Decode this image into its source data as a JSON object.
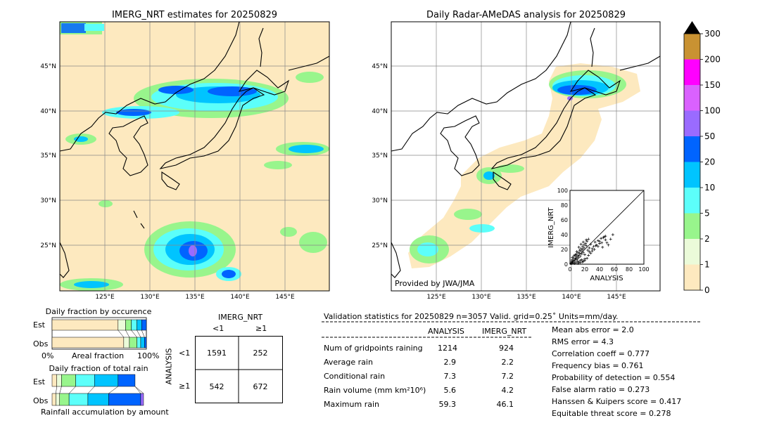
{
  "left_map": {
    "title": "IMERG_NRT estimates for 20250829",
    "lat_labels": [
      "45°N",
      "40°N",
      "35°N",
      "30°N",
      "25°N"
    ],
    "lon_labels": [
      "125°E",
      "130°E",
      "135°E",
      "140°E",
      "145°E"
    ]
  },
  "right_map": {
    "title": "Daily Radar-AMeDAS analysis for 20250829",
    "lat_labels": [
      "45°N",
      "40°N",
      "35°N",
      "30°N",
      "25°N"
    ],
    "lon_labels": [
      "125°E",
      "130°E",
      "135°E",
      "140°E",
      "145°E"
    ],
    "credit": "Provided by JWA/JMA"
  },
  "colorbar": {
    "levels": [
      "0",
      "1",
      "2",
      "5",
      "10",
      "20",
      "50",
      "100",
      "150",
      "200",
      "300"
    ],
    "colors": [
      "#fde9bf",
      "#ebfbd9",
      "#98f58c",
      "#5cfffa",
      "#00c4ff",
      "#0064ff",
      "#9a6bff",
      "#da61ff",
      "#ff00ff",
      "#c99232"
    ]
  },
  "scatter": {
    "xlabel": "ANALYSIS",
    "ylabel": "IMERG_NRT",
    "ticks": [
      "0",
      "20",
      "40",
      "60",
      "80",
      "100"
    ]
  },
  "occurrence": {
    "title": "Daily fraction by occurence",
    "row_est": "Est",
    "row_obs": "Obs",
    "axis_left": "0%",
    "axis_mid": "Areal fraction",
    "axis_right": "100%"
  },
  "total_rain": {
    "title": "Daily fraction of total rain",
    "row_est": "Est",
    "row_obs": "Obs",
    "footer": "Rainfall accumulation by amount"
  },
  "contingency": {
    "col_title": "IMERG_NRT",
    "col_lt": "<1",
    "col_ge": "≥1",
    "row_title": "ANALYSIS",
    "row_lt": "<1",
    "row_ge": "≥1",
    "cells": [
      [
        "1591",
        "252"
      ],
      [
        "542",
        "672"
      ]
    ]
  },
  "validation": {
    "header": "Validation statistics for 20250829  n=3057 Valid. grid=0.25˚ Units=mm/day.",
    "col_analysis": "ANALYSIS",
    "col_imerg": "IMERG_NRT",
    "rows": [
      {
        "label": "Num of gridpoints raining",
        "analysis": "1214",
        "imerg": "924"
      },
      {
        "label": "Average rain",
        "analysis": "2.9",
        "imerg": "2.2"
      },
      {
        "label": "Conditional rain",
        "analysis": "7.3",
        "imerg": "7.2"
      },
      {
        "label": "Rain volume (mm km²10⁶)",
        "analysis": "5.6",
        "imerg": "4.2"
      },
      {
        "label": "Maximum rain",
        "analysis": "59.3",
        "imerg": "46.1"
      }
    ],
    "scores": [
      "Mean abs error =    2.0",
      "RMS error =    4.3",
      "Correlation coeff =  0.777",
      "Frequency bias =  0.761",
      "Probability of detection =  0.554",
      "False alarm ratio =  0.273",
      "Hanssen & Kuipers score =  0.417",
      "Equitable threat score =  0.278"
    ]
  },
  "chart_data": [
    {
      "type": "table",
      "title": "Validation statistics for 20250829",
      "columns": [
        "",
        "ANALYSIS",
        "IMERG_NRT"
      ],
      "rows": [
        [
          "Num of gridpoints raining",
          1214,
          924
        ],
        [
          "Average rain",
          2.9,
          2.2
        ],
        [
          "Conditional rain",
          7.3,
          7.2
        ],
        [
          "Rain volume (mm km²10⁶)",
          5.6,
          4.2
        ],
        [
          "Maximum rain",
          59.3,
          46.1
        ]
      ]
    },
    {
      "type": "table",
      "title": "",
      "columns": [
        "ANALYSIS \\ IMERG_NRT",
        "<1",
        "≥1"
      ],
      "rows": [
        [
          "<1",
          1591,
          252
        ],
        [
          "≥1",
          542,
          672
        ]
      ]
    },
    {
      "type": "scatter",
      "xlabel": "ANALYSIS",
      "ylabel": "IMERG_NRT",
      "xlim": [
        0,
        100
      ],
      "ylim": [
        0,
        100
      ],
      "x": [
        2,
        3,
        4,
        5,
        6,
        7,
        8,
        9,
        10,
        11,
        12,
        13,
        14,
        15,
        16,
        17,
        18,
        19,
        20,
        22,
        24,
        26,
        28,
        30,
        32,
        34,
        36,
        38,
        40,
        42,
        44,
        46,
        48,
        50,
        3,
        5,
        7,
        9,
        11,
        13,
        15,
        17,
        19,
        21,
        23,
        25,
        8,
        10,
        12,
        14,
        16,
        18,
        20,
        6,
        4,
        2,
        1,
        3,
        5,
        7,
        9,
        12,
        15,
        18,
        22,
        26,
        30,
        35,
        40,
        45,
        25,
        28,
        33,
        38,
        43,
        48,
        52,
        55,
        58,
        11,
        14,
        17,
        20,
        23
      ],
      "y": [
        1,
        3,
        2,
        5,
        4,
        8,
        6,
        10,
        7,
        12,
        9,
        15,
        11,
        18,
        14,
        20,
        16,
        22,
        13,
        25,
        19,
        17,
        27,
        21,
        24,
        30,
        26,
        32,
        28,
        35,
        23,
        37,
        33,
        29,
        6,
        8,
        12,
        14,
        16,
        19,
        21,
        24,
        26,
        28,
        31,
        34,
        2,
        4,
        3,
        5,
        6,
        4,
        7,
        1,
        2,
        4,
        1,
        9,
        11,
        13,
        17,
        23,
        27,
        30,
        33,
        22,
        18,
        25,
        31,
        36,
        12,
        15,
        20,
        24,
        29,
        38,
        26,
        34,
        40,
        1,
        2,
        3,
        5,
        8
      ],
      "series_colors": [
        "#000000"
      ]
    },
    {
      "type": "bar",
      "title": "Daily fraction by occurence",
      "categories": [
        "Est",
        "Obs"
      ],
      "series": [
        {
          "values": [
            0.7,
            0.76
          ]
        },
        {
          "values": [
            0.08,
            0.06
          ]
        },
        {
          "values": [
            0.06,
            0.08
          ]
        },
        {
          "values": [
            0.06,
            0.04
          ]
        },
        {
          "values": [
            0.05,
            0.04
          ]
        },
        {
          "values": [
            0.05,
            0.02
          ]
        }
      ],
      "colors": [
        "#fde9bf",
        "#ebfbd9",
        "#98f58c",
        "#5cfffa",
        "#00c4ff",
        "#0064ff"
      ],
      "xlim": [
        0,
        1
      ]
    },
    {
      "type": "bar",
      "title": "Daily fraction of total rain",
      "categories": [
        "Est",
        "Obs"
      ],
      "series": [
        {
          "values": [
            0.05,
            0.04
          ]
        },
        {
          "values": [
            0.05,
            0.04
          ]
        },
        {
          "values": [
            0.15,
            0.1
          ]
        },
        {
          "values": [
            0.2,
            0.2
          ]
        },
        {
          "values": [
            0.25,
            0.22
          ]
        },
        {
          "values": [
            0.18,
            0.34
          ]
        },
        {
          "values": [
            0.0,
            0.03
          ]
        }
      ],
      "colors": [
        "#fde9bf",
        "#ebfbd9",
        "#98f58c",
        "#5cfffa",
        "#00c4ff",
        "#0064ff",
        "#9a6bff"
      ],
      "xlim": [
        0,
        1
      ]
    }
  ]
}
